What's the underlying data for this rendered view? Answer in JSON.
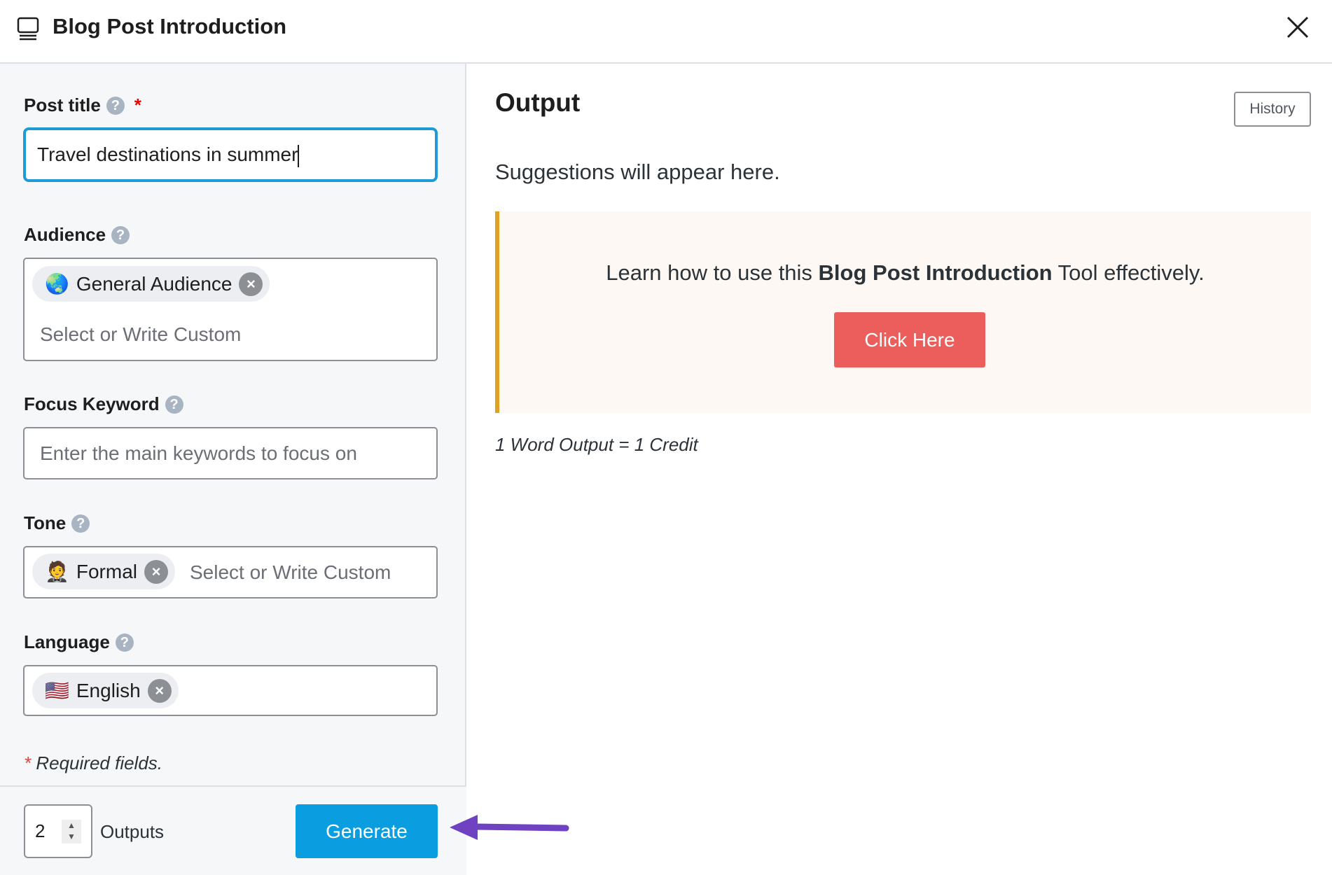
{
  "header": {
    "title": "Blog Post Introduction",
    "icon": "monitor-icon",
    "close_icon": "close-icon"
  },
  "form": {
    "post_title": {
      "label": "Post title",
      "required_mark": "*",
      "value": "Travel destinations in summer"
    },
    "audience": {
      "label": "Audience",
      "chip": "General Audience",
      "chip_icon": "globe-icon",
      "placeholder": "Select or Write Custom"
    },
    "focus_keyword": {
      "label": "Focus Keyword",
      "placeholder": "Enter the main keywords to focus on"
    },
    "tone": {
      "label": "Tone",
      "chip": "Formal",
      "chip_icon": "person-in-suit-icon",
      "placeholder": "Select or Write Custom"
    },
    "language": {
      "label": "Language",
      "chip": "English",
      "chip_icon": "us-flag-icon"
    },
    "required_note": "Required fields.",
    "required_star": "*"
  },
  "footer": {
    "outputs_value": "2",
    "outputs_label": "Outputs",
    "generate_label": "Generate",
    "arrow_color": "#6f42c1"
  },
  "output": {
    "heading": "Output",
    "history_label": "History",
    "placeholder": "Suggestions will appear here.",
    "callout": {
      "pre": "Learn how to use this ",
      "bold": "Blog Post Introduction",
      "post": " Tool effectively.",
      "button": "Click Here"
    },
    "credit_note": "1 Word Output = 1 Credit"
  },
  "colors": {
    "accent": "#0a9de0",
    "focus": "#1e9bd7",
    "cta": "#ec5e5c",
    "callout_border": "#e0a020"
  }
}
